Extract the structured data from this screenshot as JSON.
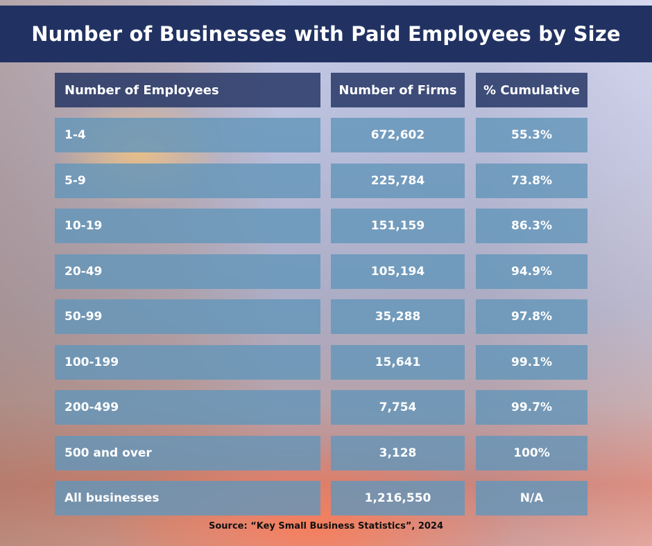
{
  "title": "Number of Businesses with Paid Employees by Size",
  "chart_data": {
    "type": "table",
    "title": "Number of Businesses with Paid Employees by Size",
    "columns": [
      "Number of Employees",
      "Number of Firms",
      "% Cumulative"
    ],
    "rows": [
      [
        "1-4",
        "672,602",
        "55.3%"
      ],
      [
        "5-9",
        "225,784",
        "73.8%"
      ],
      [
        "10-19",
        "151,159",
        "86.3%"
      ],
      [
        "20-49",
        "105,194",
        "94.9%"
      ],
      [
        "50-99",
        "35,288",
        "97.8%"
      ],
      [
        "100-199",
        "15,641",
        "99.1%"
      ],
      [
        "200-499",
        "7,754",
        "99.7%"
      ],
      [
        "500 and over",
        "3,128",
        "100%"
      ],
      [
        "All businesses",
        "1,216,550",
        "N/A"
      ]
    ]
  },
  "source": "Source: “Key Small Business Statistics”, 2024"
}
